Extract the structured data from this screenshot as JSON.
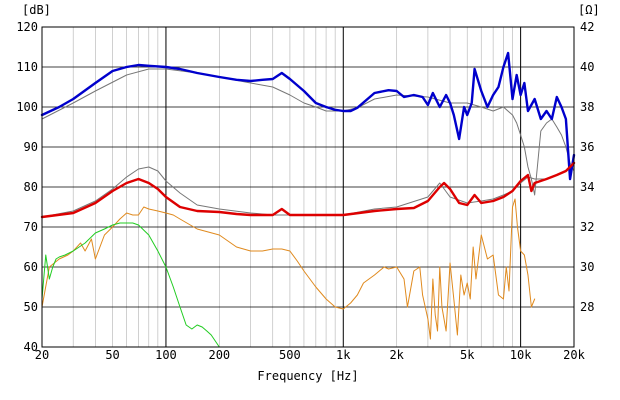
{
  "chart_data": {
    "type": "line",
    "xlabel": "Frequency [Hz]",
    "x_scale": "log",
    "xlim": [
      20,
      20000
    ],
    "x_ticks": [
      {
        "value": 20,
        "label": "20"
      },
      {
        "value": 50,
        "label": "50"
      },
      {
        "value": 100,
        "label": "100"
      },
      {
        "value": 200,
        "label": "200"
      },
      {
        "value": 500,
        "label": "500"
      },
      {
        "value": 1000,
        "label": "1k"
      },
      {
        "value": 2000,
        "label": "2k"
      },
      {
        "value": 5000,
        "label": "5k"
      },
      {
        "value": 10000,
        "label": "10k"
      },
      {
        "value": 20000,
        "label": "20k"
      }
    ],
    "ylabel_left": "[dB]",
    "ylim_left": [
      40,
      120
    ],
    "y_ticks_left": [
      40,
      50,
      60,
      70,
      80,
      90,
      100,
      110,
      120
    ],
    "ylabel_right": "[Ω]",
    "ylim_right": [
      26,
      42
    ],
    "y_ticks_right": [
      28,
      30,
      32,
      34,
      36,
      38,
      40,
      42
    ],
    "grid": true,
    "colors": {
      "spl": "#0000cc",
      "spl_ref": "#777777",
      "impedance": "#dd0000",
      "impedance_ref": "#777777",
      "harmonic_2": "#e08a1e",
      "harmonic_3": "#22cc22"
    },
    "series": [
      {
        "axis": "left",
        "color_key": "spl",
        "width": 2.4,
        "x": [
          20,
          25,
          30,
          40,
          50,
          60,
          70,
          80,
          100,
          120,
          150,
          200,
          250,
          300,
          350,
          400,
          450,
          500,
          600,
          700,
          800,
          900,
          1000,
          1100,
          1200,
          1500,
          1800,
          2000,
          2200,
          2500,
          2800,
          3000,
          3200,
          3500,
          3800,
          4000,
          4200,
          4500,
          4800,
          5000,
          5300,
          5500,
          6000,
          6500,
          7000,
          7500,
          8000,
          8500,
          9000,
          9500,
          10000,
          10500,
          11000,
          12000,
          13000,
          14000,
          15000,
          16000,
          17000,
          18000,
          19000,
          20000
        ],
        "y": [
          98,
          100,
          102,
          106,
          109,
          110,
          110.5,
          110.3,
          110,
          109.5,
          108.5,
          107.5,
          106.8,
          106.5,
          106.8,
          107,
          108.5,
          107,
          104,
          101,
          100,
          99.3,
          99,
          99,
          99.8,
          103.5,
          104.2,
          104,
          102.5,
          103,
          102.5,
          100.5,
          103.5,
          100,
          103,
          101,
          98,
          92,
          100,
          98,
          101,
          109.5,
          104,
          100,
          103,
          105,
          110,
          113.5,
          102,
          108,
          103,
          106,
          99,
          102,
          97,
          99,
          97,
          102.5,
          100,
          97,
          82,
          88
        ]
      },
      {
        "axis": "left",
        "color_key": "spl_ref",
        "width": 1,
        "x": [
          20,
          30,
          40,
          60,
          80,
          100,
          150,
          200,
          300,
          400,
          500,
          600,
          700,
          800,
          1000,
          1200,
          1500,
          2000,
          3000,
          4000,
          5000,
          6000,
          7000,
          8000,
          9000,
          9500,
          10000,
          10500,
          11000,
          11500,
          12000,
          13000,
          14000,
          15000,
          16000,
          17000,
          18000,
          19000,
          20000
        ],
        "y": [
          97,
          101,
          104,
          108,
          109.5,
          109.5,
          108.5,
          107.5,
          106,
          105,
          103,
          101,
          100,
          99,
          99,
          99.8,
          102,
          103,
          102.5,
          101,
          101,
          100,
          99,
          100,
          98,
          96,
          93,
          90,
          85,
          82,
          78,
          94,
          96,
          97,
          95,
          93,
          90,
          86,
          84
        ]
      },
      {
        "axis": "right",
        "color_key": "impedance",
        "width": 2.4,
        "x": [
          20,
          30,
          40,
          50,
          60,
          70,
          80,
          90,
          100,
          120,
          150,
          200,
          250,
          300,
          350,
          400,
          450,
          500,
          600,
          800,
          1000,
          1500,
          2000,
          2500,
          3000,
          3500,
          3700,
          4000,
          4500,
          5000,
          5500,
          6000,
          7000,
          8000,
          9000,
          10000,
          11000,
          11500,
          12000,
          14000,
          16000,
          18000,
          20000
        ],
        "y": [
          32.5,
          32.7,
          33.2,
          33.8,
          34.2,
          34.4,
          34.2,
          33.9,
          33.5,
          33,
          32.8,
          32.75,
          32.65,
          32.6,
          32.6,
          32.6,
          32.9,
          32.6,
          32.6,
          32.6,
          32.6,
          32.8,
          32.9,
          32.95,
          33.3,
          34,
          34.2,
          33.9,
          33.2,
          33.1,
          33.6,
          33.2,
          33.3,
          33.5,
          33.8,
          34.3,
          34.6,
          33.8,
          34.2,
          34.4,
          34.6,
          34.8,
          35.2
        ]
      },
      {
        "axis": "right",
        "color_key": "impedance_ref",
        "width": 1,
        "x": [
          20,
          30,
          40,
          50,
          60,
          70,
          80,
          90,
          100,
          120,
          150,
          200,
          300,
          400,
          500,
          600,
          800,
          1000,
          1500,
          2000,
          3000,
          3500,
          4000,
          5000,
          6000,
          7000,
          8000,
          9000,
          10000,
          11000,
          12000,
          14000,
          16000,
          18000,
          20000
        ],
        "y": [
          32.5,
          32.8,
          33.3,
          33.9,
          34.5,
          34.9,
          35.0,
          34.8,
          34.3,
          33.7,
          33.1,
          32.9,
          32.7,
          32.6,
          32.6,
          32.6,
          32.6,
          32.6,
          32.9,
          33,
          33.5,
          34.2,
          33.5,
          33.2,
          33.3,
          33.4,
          33.6,
          33.8,
          34.2,
          34.5,
          34.4,
          34.4,
          34.6,
          34.8,
          35.2
        ]
      },
      {
        "axis": "left",
        "color_key": "harmonic_2",
        "width": 1,
        "x": [
          20,
          22,
          25,
          28,
          30,
          33,
          35,
          38,
          40,
          45,
          50,
          55,
          60,
          65,
          70,
          75,
          80,
          90,
          100,
          110,
          120,
          150,
          200,
          250,
          300,
          350,
          400,
          450,
          500,
          550,
          600,
          700,
          800,
          900,
          1000,
          1100,
          1200,
          1300,
          1500,
          1700,
          1800,
          2000,
          2200,
          2300,
          2500,
          2700,
          2800,
          3000,
          3100,
          3200,
          3300,
          3400,
          3500,
          3600,
          3800,
          4000,
          4200,
          4400,
          4600,
          4800,
          5000,
          5200,
          5400,
          5600,
          6000,
          6500,
          7000,
          7500,
          8000,
          8300,
          8600,
          9000,
          9300,
          9600,
          10000,
          10500,
          11000,
          11500,
          12000
        ],
        "y": [
          50,
          60,
          62,
          63,
          64,
          66,
          64,
          67,
          62,
          68,
          70,
          72,
          73.5,
          73,
          73,
          75,
          74.5,
          74,
          73.5,
          73,
          72,
          69.5,
          68,
          65,
          64,
          64,
          64.5,
          64.5,
          64,
          61.5,
          59,
          55,
          52,
          50,
          49.5,
          51,
          53,
          56,
          58,
          60,
          59.5,
          60,
          57,
          50,
          59,
          60,
          53,
          47,
          42,
          57,
          48,
          44,
          60,
          50,
          44,
          61,
          52,
          43,
          58,
          53,
          56,
          52,
          65,
          57,
          68,
          62,
          63,
          53,
          52,
          60,
          54,
          75,
          77,
          70,
          64,
          63,
          58,
          50,
          52
        ]
      },
      {
        "axis": "left",
        "color_key": "harmonic_3",
        "width": 1,
        "x": [
          20,
          21,
          22,
          23,
          24,
          25,
          27,
          30,
          35,
          40,
          45,
          50,
          55,
          60,
          65,
          70,
          80,
          90,
          100,
          110,
          120,
          130,
          140,
          150,
          160,
          170,
          180,
          200
        ],
        "y": [
          52,
          63,
          57,
          60,
          62,
          62.5,
          63,
          64,
          66,
          68.5,
          69.5,
          70.5,
          71,
          71,
          71,
          70.5,
          68,
          64,
          60,
          55,
          50,
          45.5,
          44.5,
          45.5,
          45,
          44,
          43,
          40
        ]
      }
    ]
  }
}
